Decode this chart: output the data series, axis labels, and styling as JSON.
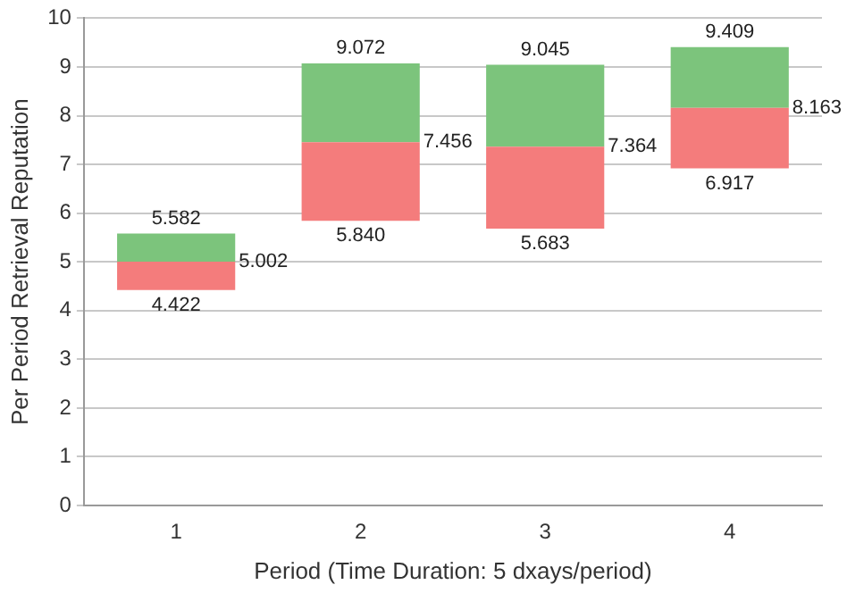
{
  "chart_data": {
    "type": "bar",
    "xlabel": "Period (Time Duration: 5 dxays/period)",
    "ylabel": "Per Period Retrieval Reputation",
    "categories": [
      "1",
      "2",
      "3",
      "4"
    ],
    "series": [
      {
        "color": "#f47c7c",
        "base": [
          4.422,
          5.84,
          5.683,
          6.917
        ],
        "values": [
          0.58,
          1.616,
          1.681,
          1.246
        ]
      },
      {
        "color": "#7cc47c",
        "base": [
          5.002,
          7.456,
          7.364,
          8.163
        ],
        "values": [
          0.58,
          1.616,
          1.681,
          1.246
        ],
        "value_labels": [
          "5.582",
          "9.072",
          "9.045",
          "9.409"
        ]
      }
    ],
    "ylim": [
      0,
      10
    ],
    "yticks": [
      0,
      1,
      2,
      3,
      4,
      5,
      6,
      7,
      8,
      9,
      10
    ],
    "grid": "y",
    "annotations": [
      "5.002",
      "7.456",
      "7.364",
      "8.163",
      {
        "text": "4.422",
        "x": "1",
        "y": 4.422
      },
      {
        "text": "5.840",
        "x": "2",
        "y": 5.84
      },
      {
        "text": "5.683",
        "x": "3",
        "y": 5.683
      },
      {
        "text": "6.917",
        "x": "4",
        "y": 6.917
      }
    ]
  }
}
